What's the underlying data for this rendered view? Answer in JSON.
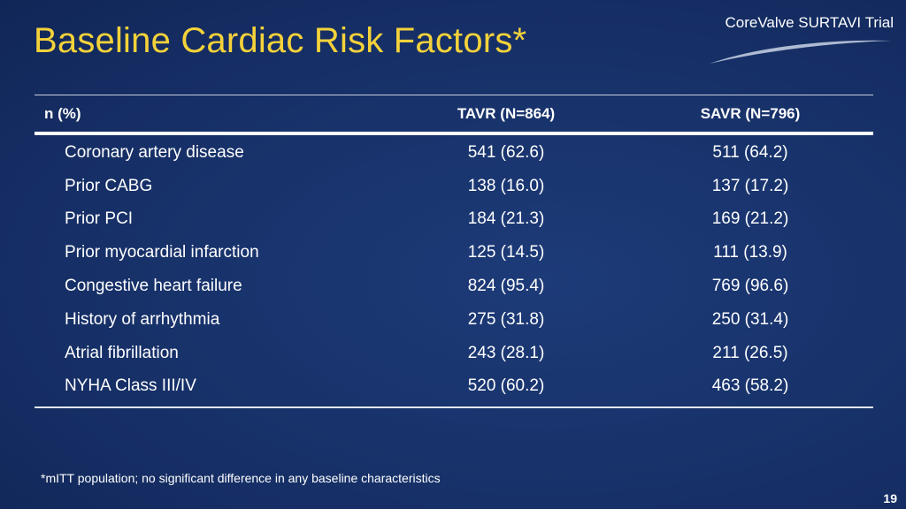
{
  "slide": {
    "title": "Baseline Cardiac Risk Factors*",
    "brand": "CoreValve SURTAVI Trial",
    "footnote": "*mITT population; no significant difference in any baseline characteristics",
    "page_number": "19"
  },
  "table": {
    "headers": {
      "label": "n (%)",
      "tavr": "TAVR (N=864)",
      "savr": "SAVR (N=796)"
    },
    "rows": [
      {
        "label": "Coronary artery disease",
        "tavr": "541 (62.6)",
        "savr": "511 (64.2)"
      },
      {
        "label": "Prior CABG",
        "tavr": "138 (16.0)",
        "savr": "137 (17.2)"
      },
      {
        "label": "Prior PCI",
        "tavr": "184 (21.3)",
        "savr": "169 (21.2)"
      },
      {
        "label": "Prior myocardial infarction",
        "tavr": "125 (14.5)",
        "savr": "111 (13.9)"
      },
      {
        "label": "Congestive heart failure",
        "tavr": "824 (95.4)",
        "savr": "769 (96.6)"
      },
      {
        "label": "History of arrhythmia",
        "tavr": "275 (31.8)",
        "savr": "250 (31.4)"
      },
      {
        "label": "Atrial fibrillation",
        "tavr": "243 (28.1)",
        "savr": "211 (26.5)"
      },
      {
        "label": "NYHA Class III/IV",
        "tavr": "520 (60.2)",
        "savr": "463 (58.2)"
      }
    ]
  },
  "colors": {
    "title": "#f4d23a",
    "background": "#162f66",
    "text": "#ffffff"
  }
}
